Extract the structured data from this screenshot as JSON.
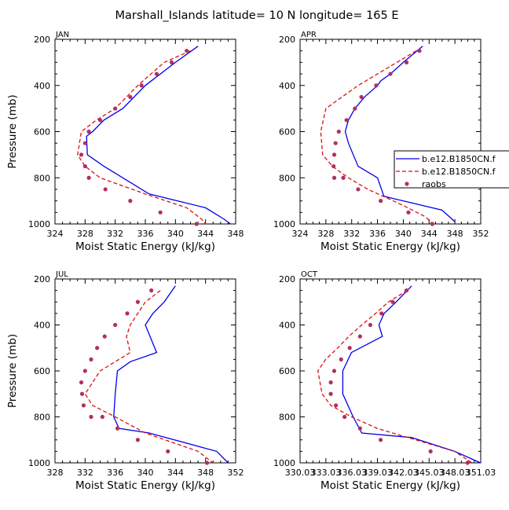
{
  "figure": {
    "title": "Marshall_Islands   latitude=  10 N longitude=  165 E"
  },
  "legend": {
    "entries": [
      {
        "label": "b.e12.B1850CN.f",
        "style": "solid",
        "color": "#0000ee"
      },
      {
        "label": "b.e12.B1850CN.f",
        "style": "dashed",
        "color": "#dd1111"
      },
      {
        "label": "raobs",
        "style": "dot",
        "color": "#b03060"
      }
    ]
  },
  "chart_data": [
    {
      "type": "line",
      "panel": "JAN",
      "title": "JAN",
      "xlabel": "Moist Static Energy (kJ/kg)",
      "ylabel": "Pressure (mb)",
      "xlim": [
        324,
        348
      ],
      "xticks": [
        "324",
        "328",
        "332",
        "336",
        "340",
        "344",
        "348"
      ],
      "ylim": [
        1000,
        200
      ],
      "yticks": [
        "200",
        "400",
        "600",
        "800",
        "1000"
      ],
      "series": [
        {
          "name": "b.e12.B1850CN.f",
          "style": "solid",
          "color": "#0000ee",
          "x": [
            343.0,
            340.0,
            336.0,
            333.0,
            330.5,
            329.0,
            328.2,
            328.3,
            330.5,
            336.5,
            344.0,
            346.5,
            347.3
          ],
          "y": [
            230,
            300,
            400,
            500,
            550,
            600,
            620,
            700,
            750,
            870,
            930,
            980,
            1000
          ]
        },
        {
          "name": "b.e12.B1850CN.f",
          "style": "dashed",
          "color": "#dd1111",
          "x": [
            342.0,
            338.5,
            335.0,
            332.0,
            329.5,
            327.5,
            327.0,
            328.0,
            330.0,
            336.0,
            341.5,
            343.5,
            344.0
          ],
          "y": [
            250,
            300,
            400,
            500,
            550,
            600,
            700,
            750,
            800,
            870,
            930,
            980,
            1000
          ]
        },
        {
          "name": "raobs",
          "style": "dot",
          "color": "#b03060",
          "x": [
            341.5,
            339.5,
            337.5,
            335.5,
            334.0,
            332.0,
            330.0,
            328.5,
            328.0,
            327.5,
            328.0,
            328.5,
            330.7,
            334.0,
            338.0,
            342.8
          ],
          "y": [
            250,
            300,
            350,
            400,
            450,
            500,
            550,
            600,
            650,
            700,
            750,
            800,
            850,
            900,
            950,
            1000
          ]
        }
      ]
    },
    {
      "type": "line",
      "panel": "APR",
      "title": "APR",
      "xlabel": "Moist Static Energy (kJ/kg)",
      "ylabel": "Pressure (mb)",
      "xlim": [
        324,
        352
      ],
      "xticks": [
        "324",
        "328",
        "332",
        "336",
        "340",
        "344",
        "348",
        "352"
      ],
      "ylim": [
        1000,
        200
      ],
      "yticks": [
        "200",
        "400",
        "600",
        "800",
        "1000"
      ],
      "series": [
        {
          "name": "b.e12.B1850CN.f",
          "style": "solid",
          "color": "#0000ee",
          "x": [
            343.0,
            340.0,
            338.0,
            336.5,
            336.0,
            334.0,
            332.5,
            331.5,
            331.0,
            331.5,
            333.0,
            336.0,
            337.0,
            346.0,
            348.0
          ],
          "y": [
            230,
            300,
            350,
            380,
            400,
            450,
            500,
            550,
            600,
            650,
            750,
            800,
            880,
            940,
            990
          ]
        },
        {
          "name": "b.e12.B1850CN.f",
          "style": "dashed",
          "color": "#dd1111",
          "x": [
            342.0,
            339.0,
            336.0,
            333.0,
            330.5,
            328.0,
            327.2,
            327.5,
            329.0,
            331.5,
            334.5,
            340.0,
            343.5,
            344.5
          ],
          "y": [
            250,
            300,
            350,
            400,
            450,
            500,
            600,
            700,
            750,
            800,
            850,
            920,
            970,
            1000
          ]
        },
        {
          "name": "raobs",
          "style": "dot",
          "color": "#b03060",
          "x": [
            342.5,
            340.5,
            338.0,
            335.8,
            333.5,
            332.5,
            331.2,
            330.0,
            329.5,
            329.3,
            329.2,
            329.3,
            330.7,
            333.0,
            336.5,
            340.8,
            344.5
          ],
          "y": [
            250,
            300,
            350,
            400,
            450,
            500,
            550,
            600,
            650,
            700,
            750,
            800,
            800,
            850,
            900,
            950,
            1000
          ]
        }
      ]
    },
    {
      "type": "line",
      "panel": "JUL",
      "title": "JUL",
      "xlabel": "Moist Static Energy (kJ/kg)",
      "ylabel": "Pressure (mb)",
      "xlim": [
        328,
        352
      ],
      "xticks": [
        "328",
        "332",
        "336",
        "340",
        "344",
        "348",
        "352"
      ],
      "ylim": [
        1000,
        200
      ],
      "yticks": [
        "200",
        "400",
        "600",
        "800",
        "1000"
      ],
      "series": [
        {
          "name": "b.e12.B1850CN.f",
          "style": "solid",
          "color": "#0000ee",
          "x": [
            344.0,
            342.5,
            341.0,
            340.0,
            341.5,
            338.0,
            336.3,
            336.0,
            335.8,
            336.5,
            340.5,
            349.5,
            351.0
          ],
          "y": [
            230,
            300,
            350,
            400,
            520,
            560,
            600,
            700,
            800,
            850,
            870,
            950,
            1000
          ]
        },
        {
          "name": "b.e12.B1850CN.f",
          "style": "dashed",
          "color": "#dd1111",
          "x": [
            342.0,
            340.0,
            339.0,
            338.0,
            337.5,
            338.0,
            334.0,
            332.0,
            333.0,
            336.0,
            340.0,
            347.0,
            349.0
          ],
          "y": [
            250,
            300,
            350,
            400,
            450,
            520,
            600,
            700,
            750,
            800,
            870,
            950,
            1000
          ]
        },
        {
          "name": "raobs",
          "style": "dot",
          "color": "#b03060",
          "x": [
            340.8,
            339.0,
            337.6,
            336.0,
            334.6,
            333.6,
            332.8,
            332.0,
            331.5,
            331.6,
            331.8,
            332.8,
            334.3,
            336.3,
            339.0,
            343.0,
            348.2
          ],
          "y": [
            250,
            300,
            350,
            400,
            450,
            500,
            550,
            600,
            650,
            700,
            750,
            800,
            800,
            850,
            900,
            950,
            1000
          ]
        }
      ]
    },
    {
      "type": "line",
      "panel": "OCT",
      "title": "OCT",
      "xlabel": "Moist Static Energy (kJ/kg)",
      "ylabel": "Pressure (mb)",
      "xlim": [
        330.03,
        351.03
      ],
      "xticks": [
        "330.03",
        "333.03",
        "336.03",
        "339.03",
        "342.03",
        "345.03",
        "348.03",
        "351.03"
      ],
      "ylim": [
        1000,
        200
      ],
      "yticks": [
        "200",
        "400",
        "600",
        "800",
        "1000"
      ],
      "series": [
        {
          "name": "b.e12.B1850CN.f",
          "style": "solid",
          "color": "#0000ee",
          "x": [
            343.0,
            341.2,
            339.8,
            339.2,
            339.6,
            336.0,
            335.0,
            335.0,
            336.2,
            337.2,
            343.0,
            348.0,
            351.0
          ],
          "y": [
            230,
            300,
            350,
            400,
            450,
            520,
            600,
            700,
            800,
            870,
            890,
            950,
            1000
          ]
        },
        {
          "name": "b.e12.B1850CN.f",
          "style": "dashed",
          "color": "#dd1111",
          "x": [
            342.5,
            340.3,
            338.8,
            337.2,
            335.7,
            334.4,
            333.0,
            332.1,
            332.6,
            333.6,
            336.0,
            339.0,
            343.5,
            348.0,
            350.0
          ],
          "y": [
            250,
            300,
            350,
            400,
            450,
            500,
            550,
            600,
            700,
            750,
            800,
            850,
            900,
            950,
            1000
          ]
        },
        {
          "name": "raobs",
          "style": "dot",
          "color": "#b03060",
          "x": [
            342.4,
            340.8,
            339.5,
            338.2,
            337.0,
            335.8,
            334.8,
            334.0,
            333.6,
            333.6,
            334.2,
            335.2,
            337.0,
            339.4,
            345.2,
            349.5
          ],
          "y": [
            250,
            300,
            350,
            400,
            450,
            500,
            550,
            600,
            650,
            700,
            750,
            800,
            850,
            900,
            950,
            1000
          ]
        }
      ]
    }
  ]
}
